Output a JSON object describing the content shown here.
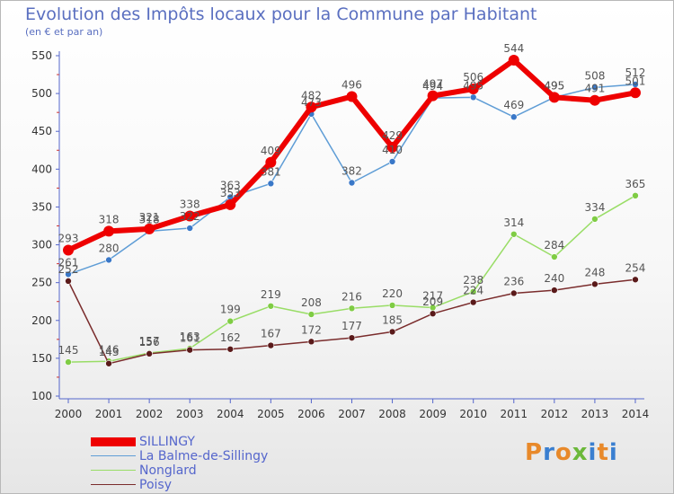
{
  "header": {
    "title": "Evolution des Impôts locaux pour la Commune par Habitant",
    "subtitle": "(en € et par an)"
  },
  "logo": {
    "text": "Proxiti"
  },
  "colors": {
    "SILLINGY": "#ee0000",
    "La Balme-de-Sillingy": "#5f9dd6",
    "Nonglard": "#99dd66",
    "Poisy": "#7a2c2c",
    "axis_text": "#333333",
    "axis_line": "#5566cc",
    "label_text": "#555555",
    "logo": [
      "#e8892a",
      "#3a7fd0",
      "#e8892a",
      "#6bb83a",
      "#3a7fd0",
      "#e8892a",
      "#3a7fd0"
    ]
  },
  "chart_data": {
    "type": "line",
    "title": "Evolution des Impôts locaux pour la Commune par Habitant",
    "subtitle": "(en € et par an)",
    "xlabel": "",
    "ylabel": "",
    "x": [
      "2000",
      "2001",
      "2002",
      "2003",
      "2004",
      "2005",
      "2006",
      "2007",
      "2008",
      "2009",
      "2010",
      "2011",
      "2012",
      "2013",
      "2014"
    ],
    "ylim": [
      100,
      550
    ],
    "yticks": [
      100,
      150,
      200,
      250,
      300,
      350,
      400,
      450,
      500,
      550
    ],
    "grid": false,
    "legend_position": "bottom-left",
    "series": [
      {
        "name": "SILLINGY",
        "values": [
          293,
          318,
          321,
          338,
          353,
          409,
          482,
          496,
          429,
          497,
          506,
          544,
          495,
          491,
          501
        ]
      },
      {
        "name": "La Balme-de-Sillingy",
        "values": [
          261,
          280,
          318,
          322,
          363,
          381,
          473,
          382,
          410,
          494,
          495,
          469,
          495,
          508,
          512
        ]
      },
      {
        "name": "Nonglard",
        "values": [
          145,
          146,
          157,
          163,
          199,
          219,
          208,
          216,
          220,
          217,
          238,
          314,
          284,
          334,
          365
        ]
      },
      {
        "name": "Poisy",
        "values": [
          252,
          143,
          156,
          161,
          162,
          167,
          172,
          177,
          185,
          209,
          224,
          236,
          240,
          248,
          254
        ]
      }
    ]
  }
}
